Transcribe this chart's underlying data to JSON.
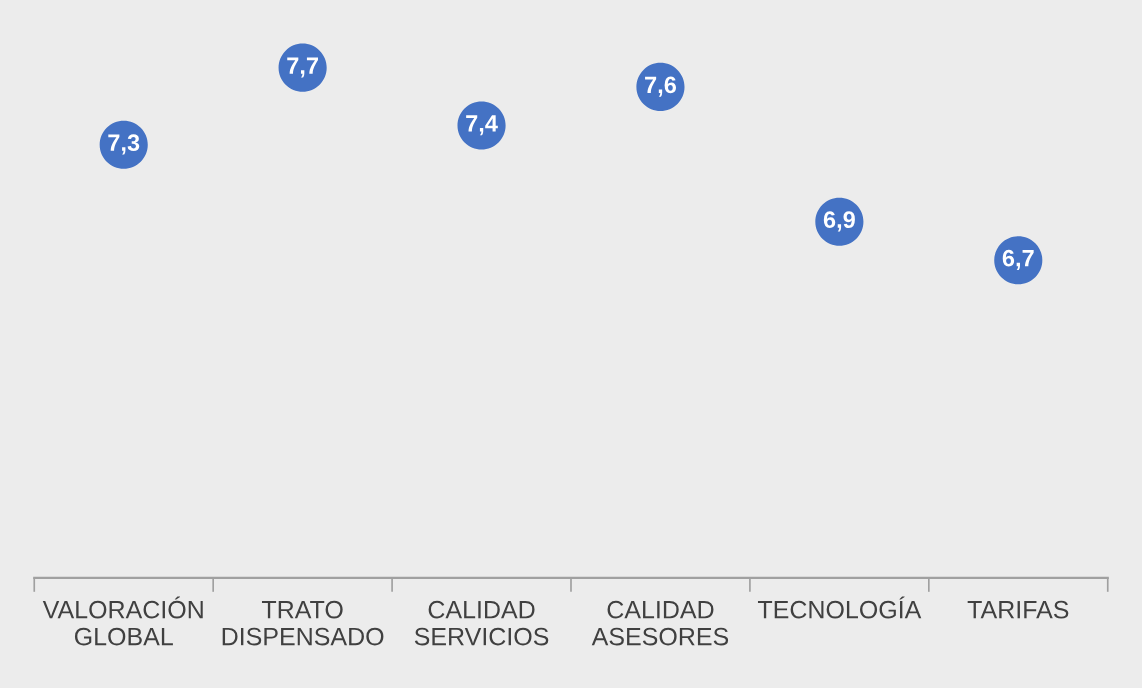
{
  "chart_data": {
    "type": "scatter",
    "categories": [
      "VALORACIÓN\nGLOBAL",
      "TRATO\nDISPENSADO",
      "CALIDAD\nSERVICIOS",
      "CALIDAD\nASESORES",
      "TECNOLOGÍA",
      "TARIFAS"
    ],
    "values": [
      7.3,
      7.7,
      7.4,
      7.6,
      6.9,
      6.7
    ],
    "value_labels": [
      "7,3",
      "7,7",
      "7,4",
      "7,6",
      "6,9",
      "6,7"
    ],
    "color": "#4472c4",
    "marker": "circle",
    "grid": false,
    "legend": false,
    "tick_labels": "x"
  }
}
